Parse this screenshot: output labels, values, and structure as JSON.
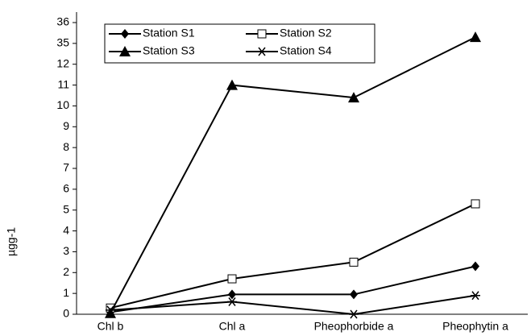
{
  "chart_data": {
    "type": "line",
    "y_label": "µgg-1",
    "categories": [
      "Chl b",
      "Chl a",
      "Pheophorbide a",
      "Pheophytin a"
    ],
    "series": [
      {
        "name": "Station S1",
        "color": "#000000",
        "marker": "diamond",
        "values": [
          0.1,
          0.95,
          0.95,
          2.3
        ]
      },
      {
        "name": "Station S2",
        "color": "#000000",
        "marker": "square-open",
        "values": [
          0.3,
          1.7,
          2.5,
          5.3
        ]
      },
      {
        "name": "Station S3",
        "color": "#000000",
        "marker": "triangle",
        "values": [
          0.05,
          11.0,
          10.4,
          35.3
        ]
      },
      {
        "name": "Station S4",
        "color": "#000000",
        "marker": "asterisk",
        "values": [
          0.2,
          0.6,
          0,
          0.9
        ]
      }
    ],
    "ylim": [
      0,
      36
    ],
    "yticks": [
      0,
      1,
      2,
      3,
      4,
      5,
      6,
      7,
      8,
      9,
      10,
      11,
      12,
      35,
      36
    ],
    "y_break": [
      12,
      35
    ]
  }
}
